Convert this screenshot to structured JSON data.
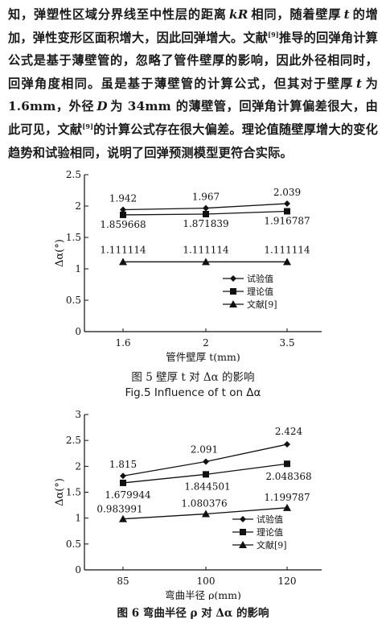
{
  "paragraph": {
    "s1": "知，弹塑性区域分界线至中性层的距离",
    "s1_var": "kR",
    "s2": "相同，随着壁厚",
    "s2_var": "t",
    "s3": "的增加，弹性变形区面积增大，因此回弹增大。文献",
    "ref1": "[9]",
    "s4": "推导的回弹角计算公式是基于薄壁管的，忽略了管件壁厚的影响，因此外径相同时，回弹角度相同。虽是基于薄壁管的计算公式，但其对于壁厚",
    "s4_var": "t",
    "s5": "为 1.6mm，外径",
    "s5_var": "D",
    "s6": "为 34mm 的薄壁管，回弹角计算偏差很大，由此可见，文献",
    "ref2": "[9]",
    "s7": "的计算公式存在很大偏差。理论值随壁厚增大的变化趋势和试验相同，说明了回弹预测模型更符合实际。"
  },
  "figure5": {
    "caption_cn": "图 5  壁厚 t 对 Δα 的影响",
    "caption_en": "Fig.5  Influence of t on Δα",
    "chart_data": {
      "type": "line",
      "categories": [
        "1.6",
        "2",
        "3.5"
      ],
      "xlabel": "管件壁厚 t(mm)",
      "ylabel": "Δα(°)",
      "ylim": [
        0,
        2.5
      ],
      "yticks": [
        "0",
        "0.5",
        "1",
        "1.5",
        "2",
        "2.5"
      ],
      "legend_position": "right",
      "series": [
        {
          "name": "试验值",
          "marker": "diamond",
          "values": [
            1.942,
            1.967,
            2.039
          ],
          "labels": [
            "1.942",
            "1.967",
            "2.039"
          ]
        },
        {
          "name": "理论值",
          "marker": "square",
          "values": [
            1.859668,
            1.871839,
            1.916787
          ],
          "labels": [
            "1.859668",
            "1.871839",
            "1.916787"
          ]
        },
        {
          "name": "文献[9]",
          "marker": "triangle",
          "values": [
            1.111114,
            1.111114,
            1.111114
          ],
          "labels": [
            "1.111114",
            "1.111114",
            "1.111114"
          ]
        }
      ]
    }
  },
  "figure6": {
    "caption_cn": "图 6  弯曲半径 ρ 对 Δα 的影响",
    "chart_data": {
      "type": "line",
      "categories": [
        "85",
        "100",
        "120"
      ],
      "xlabel": "弯曲半径 ρ(mm)",
      "ylabel": "Δα(°)",
      "ylim": [
        0,
        3
      ],
      "yticks": [
        "0",
        "0.5",
        "1",
        "1.5",
        "2",
        "2.5",
        "3"
      ],
      "legend_position": "bottom-right",
      "series": [
        {
          "name": "试验值",
          "marker": "diamond",
          "values": [
            1.815,
            2.091,
            2.424
          ],
          "labels": [
            "1.815",
            "2.091",
            "2.424"
          ]
        },
        {
          "name": "理论值",
          "marker": "square",
          "values": [
            1.679944,
            1.844501,
            2.048368
          ],
          "labels": [
            "1.679944",
            "1.844501",
            "2.048368"
          ]
        },
        {
          "name": "文献[9]",
          "marker": "triangle",
          "values": [
            0.983991,
            1.080376,
            1.199787
          ],
          "labels": [
            "0.983991",
            "1.080376",
            "1.199787"
          ]
        }
      ]
    }
  }
}
